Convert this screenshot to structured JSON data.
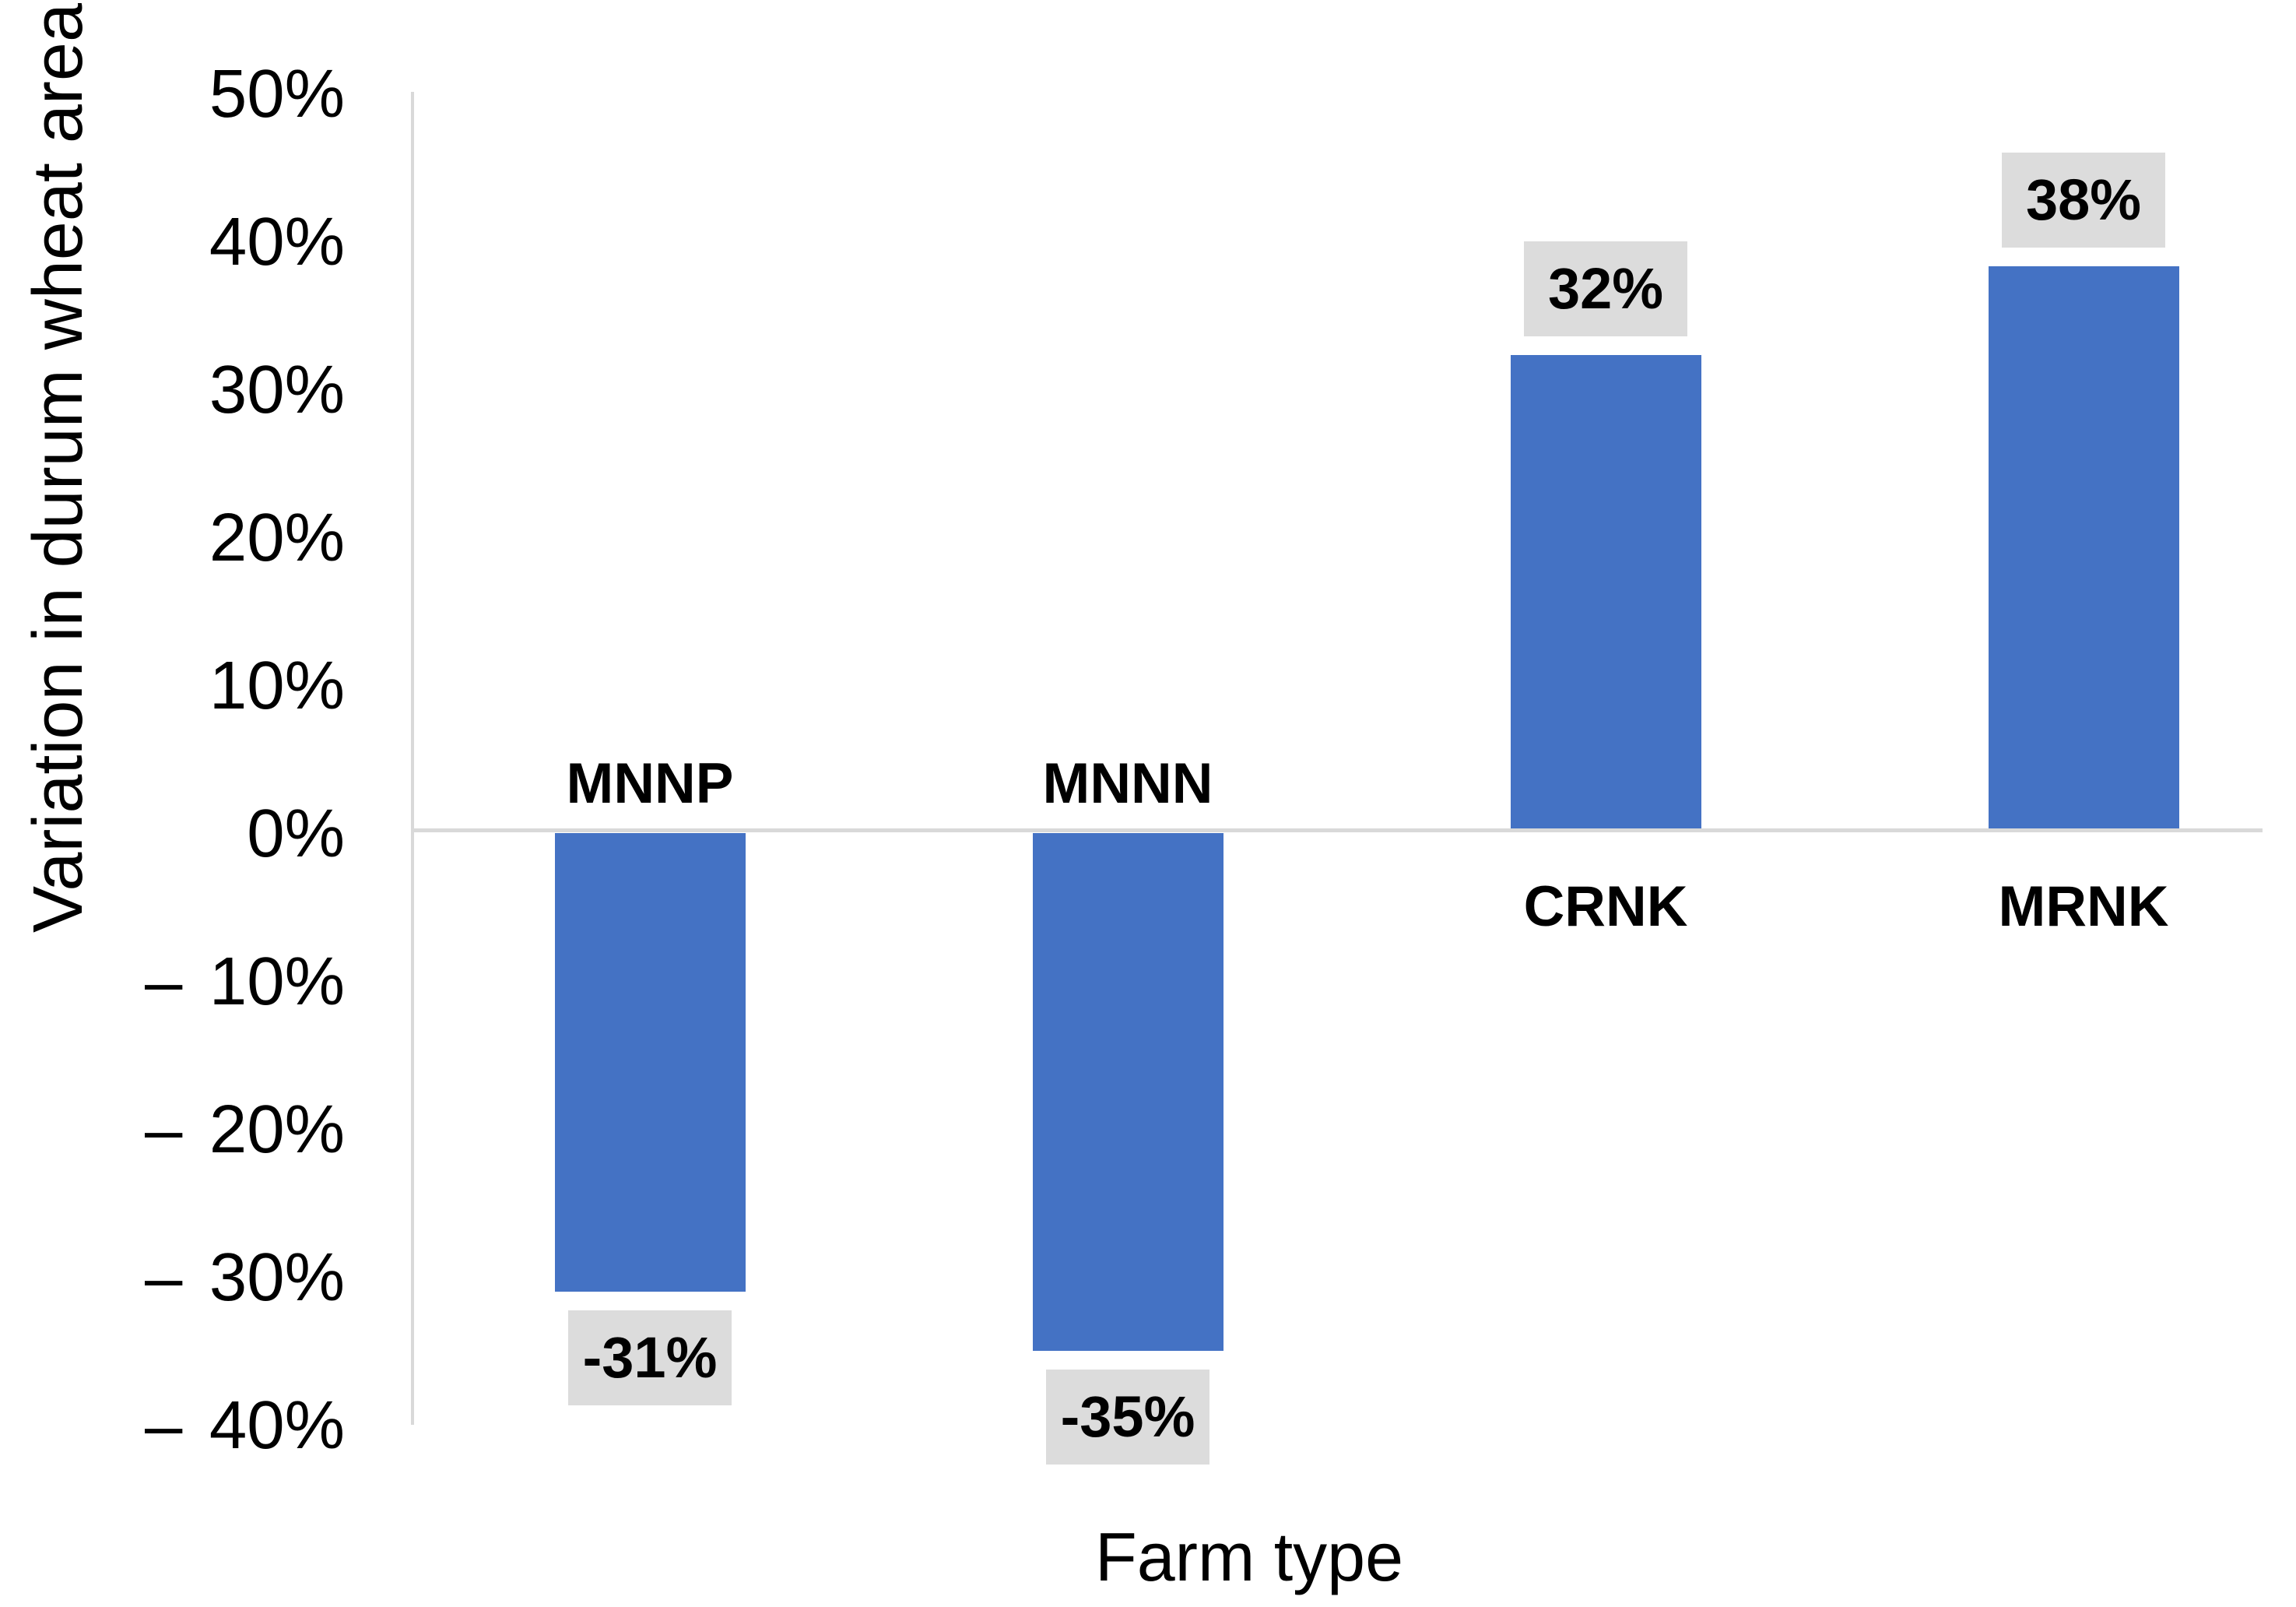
{
  "chart_data": {
    "type": "bar",
    "title": "",
    "xlabel": "Farm type",
    "ylabel": "Variation in durum wheat area",
    "categories": [
      "MNNP",
      "MNNN",
      "CRNK",
      "MRNK"
    ],
    "values": [
      -31,
      -35,
      32,
      38
    ],
    "data_labels": [
      "-31%",
      "-35%",
      "32%",
      "38%"
    ],
    "y_ticks": [
      {
        "value": 50,
        "label": "50%"
      },
      {
        "value": 40,
        "label": "40%"
      },
      {
        "value": 30,
        "label": "30%"
      },
      {
        "value": 20,
        "label": "20%"
      },
      {
        "value": 10,
        "label": "10%"
      },
      {
        "value": 0,
        "label": "0%"
      },
      {
        "value": -10,
        "label": "– 10%"
      },
      {
        "value": -20,
        "label": "– 20%"
      },
      {
        "value": -30,
        "label": "– 30%"
      },
      {
        "value": -40,
        "label": "– 40%"
      }
    ],
    "ylim": [
      -40,
      50
    ],
    "grid": false,
    "legend": false,
    "colors": {
      "bar": "#4472C4",
      "data_label_bg": "#DCDCDC",
      "axis_line": "#D9D9D9",
      "text": "#000000"
    }
  }
}
